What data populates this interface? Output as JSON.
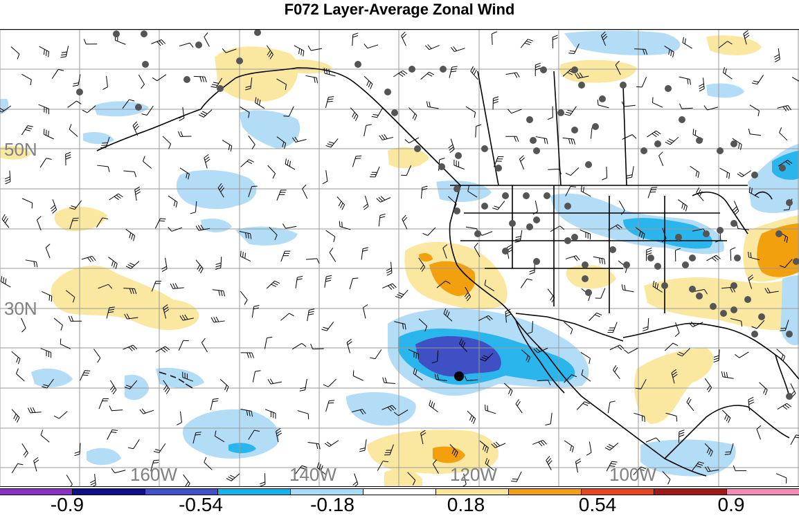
{
  "title": "F072 Layer-Average Zonal Wind",
  "lat_labels": [
    {
      "text": "50N",
      "lat": 50
    },
    {
      "text": "30N",
      "lat": 30
    }
  ],
  "lon_labels": [
    {
      "text": "160W",
      "lon": -160
    },
    {
      "text": "140W",
      "lon": -140
    },
    {
      "text": "120W",
      "lon": -120
    },
    {
      "text": "100W",
      "lon": -100
    }
  ],
  "colorbar": {
    "colors": [
      "#8b2fc9",
      "#10108a",
      "#3f50c8",
      "#12b4ec",
      "#a8dcf8",
      "#ffffff",
      "#fbe79a",
      "#f2a00e",
      "#e8451c",
      "#a11818",
      "#f28cb5"
    ],
    "labels": [
      "-0.9",
      "-0.54",
      "-0.18",
      "0.18",
      "0.54",
      "0.9"
    ]
  },
  "colors": {
    "neg_light": "#b3dcf7",
    "neg_mid": "#2ab6ec",
    "neg_dark": "#3f4fc4",
    "pos_light": "#fbe8a0",
    "pos_mid": "#f2a00e",
    "grid": "#9a9a9a",
    "coast": "#000000",
    "station": "#555555",
    "marker": "#000000"
  }
}
